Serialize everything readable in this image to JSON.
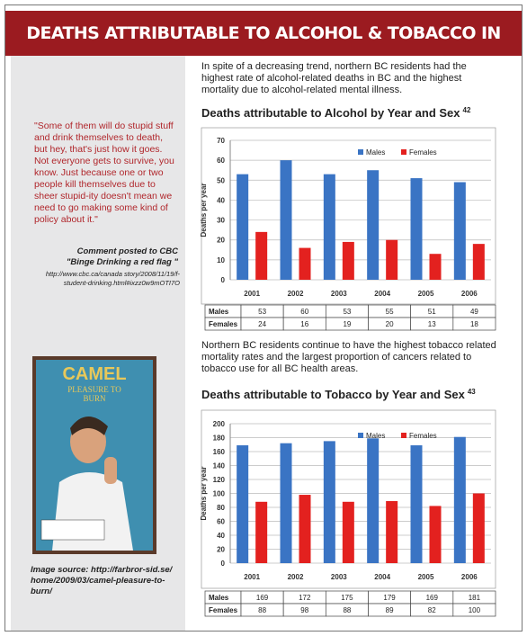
{
  "header": {
    "title": "DEATHS ATTRIBUTABLE TO ALCOHOL & TOBACCO IN NORTHERN BC"
  },
  "sidebar": {
    "quote": "\"Some of them will do stupid stuff and drink themselves to death, but hey, that's just how it goes. Not everyone gets to survive, you know. Just because one or two people kill themselves due to sheer stupid-ity doesn't mean we need to go making some kind of policy about it.\"",
    "attribution": "Comment posted to CBC",
    "attribution_title": "\"Binge Drinking a red flag \"",
    "url": "http://www.cbc.ca/canada story/2008/11/19/f-student-drinking.html#ixzz0w9mOTI7O",
    "image": {
      "brand": "CAMEL",
      "tagline": "PLEASURE TO BURN"
    },
    "image_caption": "Image source: http://farbror-sid.se/ home/2009/03/camel-pleasure-to-burn/"
  },
  "intro_1": "In spite of a decreasing trend, northern BC residents had the highest rate of alcohol-related deaths in BC and the highest mortality due to alcohol-related mental illness.",
  "intro_2": "Northern BC residents continue to have the highest tobacco related mortality rates and the largest proportion of cancers related to tobacco use for all BC health areas.",
  "chart_data": [
    {
      "type": "bar",
      "title": "Deaths attributable to Alcohol by Year and Sex",
      "footnote": "42",
      "y_label": "Deaths per year",
      "categories": [
        "2001",
        "2002",
        "2003",
        "2004",
        "2005",
        "2006"
      ],
      "series": [
        {
          "name": "Males",
          "color": "#3a74c4",
          "values": [
            53,
            60,
            53,
            55,
            51,
            49
          ]
        },
        {
          "name": "Females",
          "color": "#e3211f",
          "values": [
            24,
            16,
            19,
            20,
            13,
            18
          ]
        }
      ],
      "ylim": [
        0,
        70
      ],
      "yticks": [
        0,
        10,
        20,
        30,
        40,
        50,
        60,
        70
      ],
      "grid": true,
      "legend": "top"
    },
    {
      "type": "bar",
      "title": "Deaths attributable to Tobacco by Year and Sex",
      "footnote": "43",
      "y_label": "Deaths per year",
      "categories": [
        "2001",
        "2002",
        "2003",
        "2004",
        "2005",
        "2006"
      ],
      "series": [
        {
          "name": "Males",
          "color": "#3a74c4",
          "values": [
            169,
            172,
            175,
            179,
            169,
            181
          ]
        },
        {
          "name": "Females",
          "color": "#e3211f",
          "values": [
            88,
            98,
            88,
            89,
            82,
            100
          ]
        }
      ],
      "ylim": [
        0,
        200
      ],
      "yticks": [
        0,
        20,
        40,
        60,
        80,
        100,
        120,
        140,
        160,
        180,
        200
      ],
      "grid": true,
      "legend": "top"
    }
  ]
}
